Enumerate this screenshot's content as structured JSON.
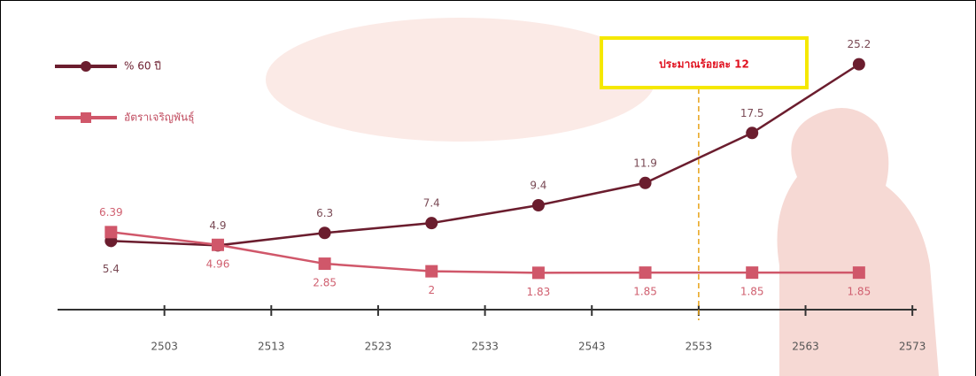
{
  "chart_data": {
    "type": "line",
    "series": [
      {
        "name": "% 60 ปี",
        "color": "#6b1d2e",
        "values": [
          5.4,
          4.9,
          6.3,
          7.4,
          9.4,
          11.9,
          17.5,
          25.2
        ]
      },
      {
        "name": "อัตราเจริญพันธุ์",
        "color": "#d0576a",
        "values": [
          6.39,
          4.96,
          2.85,
          2,
          1.83,
          1.85,
          1.85,
          1.85
        ]
      }
    ],
    "x": [
      2498,
      2508,
      2518,
      2528,
      2538,
      2548,
      2558,
      2568
    ],
    "xlim": [
      2493,
      2573.4
    ],
    "xticks": [
      2503,
      2513,
      2523,
      2533,
      2543,
      2553,
      2563,
      2573
    ],
    "ylim": [
      -2.3,
      32.4
    ],
    "annotation": {
      "text": "ประมาณร้อยละ 12",
      "x": 2553
    }
  }
}
